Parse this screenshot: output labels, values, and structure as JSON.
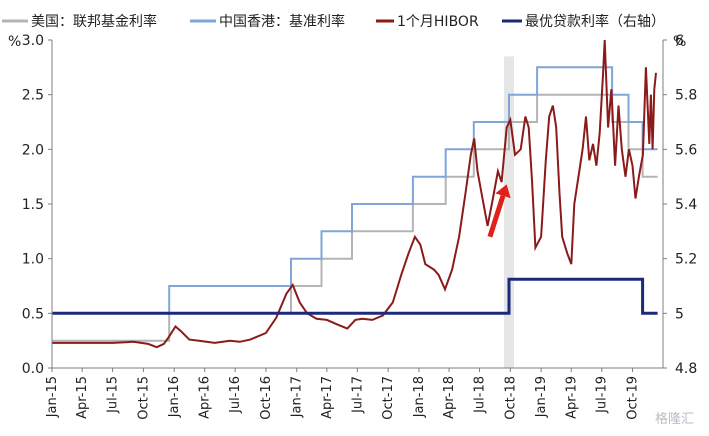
{
  "chart_data": {
    "type": "line",
    "left_axis": {
      "unit": "%",
      "ylim": [
        0,
        3.0
      ],
      "ticks": [
        "0.0",
        "0.5",
        "1.0",
        "1.5",
        "2.0",
        "2.5",
        "3.0"
      ]
    },
    "right_axis": {
      "unit": "%",
      "ylim": [
        4.8,
        6.0
      ],
      "ticks": [
        "4.8",
        "5",
        "5.2",
        "5.4",
        "5.6",
        "5.8",
        "6"
      ]
    },
    "x_ticks": [
      "Jan-15",
      "Apr-15",
      "Jul-15",
      "Oct-15",
      "Jan-16",
      "Apr-16",
      "Jul-16",
      "Oct-16",
      "Jan-17",
      "Apr-17",
      "Jul-17",
      "Oct-17",
      "Jan-18",
      "Apr-18",
      "Jul-18",
      "Oct-18",
      "Jan-19",
      "Apr-19",
      "Jul-19",
      "Oct-19"
    ],
    "legend": [
      {
        "name": "美国：联邦基金利率",
        "color": "#b4b4b4"
      },
      {
        "name": "中国香港：基准利率",
        "color": "#7ea6d8"
      },
      {
        "name": "1个月HIBOR",
        "color": "#8b1a1a"
      },
      {
        "name": "最优贷款利率（右轴）",
        "color": "#1b2a7a"
      }
    ],
    "series": [
      {
        "name": "美国：联邦基金利率",
        "axis": "left",
        "color": "#b4b4b4",
        "step": true,
        "points": [
          [
            "2015-01-01",
            0.25
          ],
          [
            "2015-12-17",
            0.5
          ],
          [
            "2016-12-15",
            0.75
          ],
          [
            "2017-03-16",
            1.0
          ],
          [
            "2017-06-15",
            1.25
          ],
          [
            "2017-12-14",
            1.5
          ],
          [
            "2018-03-22",
            1.75
          ],
          [
            "2018-06-14",
            2.0
          ],
          [
            "2018-09-27",
            2.25
          ],
          [
            "2018-12-20",
            2.5
          ],
          [
            "2019-08-01",
            2.25
          ],
          [
            "2019-09-19",
            2.0
          ],
          [
            "2019-10-31",
            1.75
          ],
          [
            "2019-12-15",
            1.75
          ]
        ]
      },
      {
        "name": "中国香港：基准利率",
        "axis": "left",
        "color": "#7ea6d8",
        "step": true,
        "points": [
          [
            "2015-01-01",
            0.5
          ],
          [
            "2015-12-17",
            0.75
          ],
          [
            "2016-12-15",
            1.0
          ],
          [
            "2017-03-16",
            1.25
          ],
          [
            "2017-06-15",
            1.5
          ],
          [
            "2017-12-14",
            1.75
          ],
          [
            "2018-03-22",
            2.0
          ],
          [
            "2018-06-14",
            2.25
          ],
          [
            "2018-09-27",
            2.5
          ],
          [
            "2018-12-20",
            2.75
          ],
          [
            "2019-08-01",
            2.5
          ],
          [
            "2019-09-19",
            2.25
          ],
          [
            "2019-10-31",
            2.0
          ],
          [
            "2019-12-15",
            2.0
          ]
        ]
      },
      {
        "name": "1个月HIBOR",
        "axis": "left",
        "color": "#8b1a1a",
        "step": false,
        "points": [
          [
            "2015-01-01",
            0.23
          ],
          [
            "2015-04-01",
            0.23
          ],
          [
            "2015-07-01",
            0.23
          ],
          [
            "2015-09-01",
            0.24
          ],
          [
            "2015-10-15",
            0.22
          ],
          [
            "2015-11-10",
            0.19
          ],
          [
            "2015-12-01",
            0.22
          ],
          [
            "2015-12-15",
            0.28
          ],
          [
            "2016-01-05",
            0.38
          ],
          [
            "2016-01-20",
            0.34
          ],
          [
            "2016-02-15",
            0.26
          ],
          [
            "2016-03-15",
            0.25
          ],
          [
            "2016-05-01",
            0.23
          ],
          [
            "2016-06-15",
            0.25
          ],
          [
            "2016-07-15",
            0.24
          ],
          [
            "2016-08-15",
            0.26
          ],
          [
            "2016-10-01",
            0.32
          ],
          [
            "2016-11-01",
            0.46
          ],
          [
            "2016-12-01",
            0.68
          ],
          [
            "2016-12-20",
            0.76
          ],
          [
            "2017-01-10",
            0.6
          ],
          [
            "2017-02-01",
            0.5
          ],
          [
            "2017-03-01",
            0.45
          ],
          [
            "2017-04-01",
            0.44
          ],
          [
            "2017-05-01",
            0.4
          ],
          [
            "2017-06-01",
            0.36
          ],
          [
            "2017-06-25",
            0.44
          ],
          [
            "2017-07-15",
            0.45
          ],
          [
            "2017-08-15",
            0.44
          ],
          [
            "2017-09-15",
            0.48
          ],
          [
            "2017-10-15",
            0.6
          ],
          [
            "2017-11-10",
            0.86
          ],
          [
            "2017-12-01",
            1.05
          ],
          [
            "2017-12-20",
            1.2
          ],
          [
            "2018-01-05",
            1.13
          ],
          [
            "2018-01-20",
            0.95
          ],
          [
            "2018-02-15",
            0.9
          ],
          [
            "2018-03-01",
            0.85
          ],
          [
            "2018-03-20",
            0.72
          ],
          [
            "2018-04-10",
            0.9
          ],
          [
            "2018-05-01",
            1.2
          ],
          [
            "2018-05-20",
            1.6
          ],
          [
            "2018-06-05",
            1.95
          ],
          [
            "2018-06-15",
            2.1
          ],
          [
            "2018-06-25",
            1.8
          ],
          [
            "2018-07-10",
            1.55
          ],
          [
            "2018-07-25",
            1.3
          ],
          [
            "2018-08-10",
            1.55
          ],
          [
            "2018-08-25",
            1.8
          ],
          [
            "2018-09-05",
            1.7
          ],
          [
            "2018-09-20",
            2.2
          ],
          [
            "2018-10-01",
            2.27
          ],
          [
            "2018-10-15",
            1.95
          ],
          [
            "2018-11-01",
            2.0
          ],
          [
            "2018-11-15",
            2.3
          ],
          [
            "2018-11-25",
            2.2
          ],
          [
            "2018-12-05",
            1.7
          ],
          [
            "2018-12-15",
            1.1
          ],
          [
            "2019-01-01",
            1.2
          ],
          [
            "2019-01-15",
            1.9
          ],
          [
            "2019-01-25",
            2.3
          ],
          [
            "2019-02-05",
            2.4
          ],
          [
            "2019-02-15",
            2.2
          ],
          [
            "2019-02-25",
            1.6
          ],
          [
            "2019-03-05",
            1.2
          ],
          [
            "2019-03-20",
            1.05
          ],
          [
            "2019-04-01",
            0.95
          ],
          [
            "2019-04-10",
            1.5
          ],
          [
            "2019-04-25",
            1.8
          ],
          [
            "2019-05-05",
            2.0
          ],
          [
            "2019-05-15",
            2.3
          ],
          [
            "2019-05-25",
            1.9
          ],
          [
            "2019-06-05",
            2.05
          ],
          [
            "2019-06-15",
            1.85
          ],
          [
            "2019-06-25",
            2.15
          ],
          [
            "2019-07-05",
            2.7
          ],
          [
            "2019-07-10",
            3.0
          ],
          [
            "2019-07-20",
            2.2
          ],
          [
            "2019-07-30",
            2.55
          ],
          [
            "2019-08-10",
            1.85
          ],
          [
            "2019-08-20",
            2.4
          ],
          [
            "2019-08-30",
            2.0
          ],
          [
            "2019-09-10",
            1.75
          ],
          [
            "2019-09-20",
            2.0
          ],
          [
            "2019-10-01",
            1.85
          ],
          [
            "2019-10-10",
            1.55
          ],
          [
            "2019-10-20",
            1.75
          ],
          [
            "2019-11-01",
            1.95
          ],
          [
            "2019-11-10",
            2.75
          ],
          [
            "2019-11-20",
            2.05
          ],
          [
            "2019-11-25",
            2.5
          ],
          [
            "2019-11-30",
            2.0
          ],
          [
            "2019-12-05",
            2.55
          ],
          [
            "2019-12-10",
            2.7
          ]
        ]
      },
      {
        "name": "最优贷款利率（右轴）",
        "axis": "right",
        "color": "#1b2a7a",
        "step": true,
        "points": [
          [
            "2015-01-01",
            5.0
          ],
          [
            "2018-09-27",
            5.125
          ],
          [
            "2019-10-31",
            5.0
          ],
          [
            "2019-12-15",
            5.0
          ]
        ]
      }
    ],
    "highlight_band": [
      "2018-09-12",
      "2018-10-12"
    ],
    "arrow": {
      "from": [
        "2018-08-01",
        1.2
      ],
      "to": [
        "2018-09-20",
        1.68
      ],
      "color": "#e0201b"
    }
  },
  "watermark": "格隆汇"
}
